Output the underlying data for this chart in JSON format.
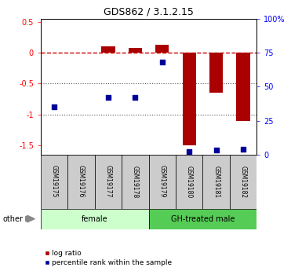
{
  "title": "GDS862 / 3.1.2.15",
  "samples": [
    "GSM19175",
    "GSM19176",
    "GSM19177",
    "GSM19178",
    "GSM19179",
    "GSM19180",
    "GSM19181",
    "GSM19182"
  ],
  "log_ratio": [
    0.0,
    0.0,
    0.1,
    0.08,
    0.13,
    -1.5,
    -0.65,
    -1.1
  ],
  "percentile_rank": [
    35,
    null,
    42,
    42,
    68,
    2,
    3,
    4
  ],
  "ylim_left": [
    -1.65,
    0.55
  ],
  "ylim_right": [
    0,
    100
  ],
  "bar_color": "#AA0000",
  "point_color": "#000099",
  "dashed_line_color": "#CC0000",
  "grid_color": "#555555",
  "group_colors": [
    "#ccffcc",
    "#55cc55"
  ],
  "group_labels": [
    "female",
    "GH-treated male"
  ],
  "group_ranges": [
    [
      0,
      4
    ],
    [
      4,
      8
    ]
  ],
  "sample_box_color": "#cccccc",
  "other_label": "other",
  "legend_red_label": "log ratio",
  "legend_blue_label": "percentile rank within the sample"
}
